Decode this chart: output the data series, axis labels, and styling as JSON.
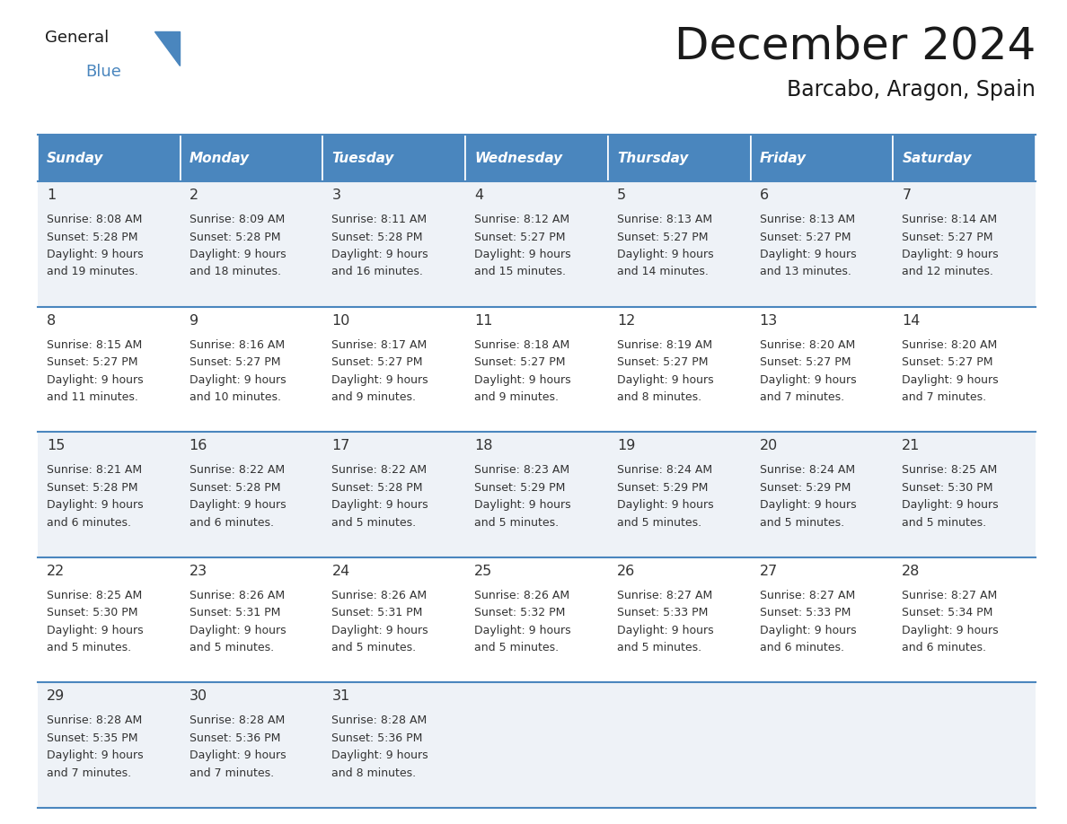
{
  "title": "December 2024",
  "subtitle": "Barcabo, Aragon, Spain",
  "header_bg": "#4a86be",
  "header_text_color": "#ffffff",
  "cell_bg_light": "#eef2f7",
  "cell_bg_white": "#ffffff",
  "border_color": "#4a86be",
  "text_color": "#333333",
  "days_of_week": [
    "Sunday",
    "Monday",
    "Tuesday",
    "Wednesday",
    "Thursday",
    "Friday",
    "Saturday"
  ],
  "weeks": [
    [
      {
        "day": "1",
        "sunrise": "8:08 AM",
        "sunset": "5:28 PM",
        "daylight_line1": "Daylight: 9 hours",
        "daylight_line2": "and 19 minutes."
      },
      {
        "day": "2",
        "sunrise": "8:09 AM",
        "sunset": "5:28 PM",
        "daylight_line1": "Daylight: 9 hours",
        "daylight_line2": "and 18 minutes."
      },
      {
        "day": "3",
        "sunrise": "8:11 AM",
        "sunset": "5:28 PM",
        "daylight_line1": "Daylight: 9 hours",
        "daylight_line2": "and 16 minutes."
      },
      {
        "day": "4",
        "sunrise": "8:12 AM",
        "sunset": "5:27 PM",
        "daylight_line1": "Daylight: 9 hours",
        "daylight_line2": "and 15 minutes."
      },
      {
        "day": "5",
        "sunrise": "8:13 AM",
        "sunset": "5:27 PM",
        "daylight_line1": "Daylight: 9 hours",
        "daylight_line2": "and 14 minutes."
      },
      {
        "day": "6",
        "sunrise": "8:13 AM",
        "sunset": "5:27 PM",
        "daylight_line1": "Daylight: 9 hours",
        "daylight_line2": "and 13 minutes."
      },
      {
        "day": "7",
        "sunrise": "8:14 AM",
        "sunset": "5:27 PM",
        "daylight_line1": "Daylight: 9 hours",
        "daylight_line2": "and 12 minutes."
      }
    ],
    [
      {
        "day": "8",
        "sunrise": "8:15 AM",
        "sunset": "5:27 PM",
        "daylight_line1": "Daylight: 9 hours",
        "daylight_line2": "and 11 minutes."
      },
      {
        "day": "9",
        "sunrise": "8:16 AM",
        "sunset": "5:27 PM",
        "daylight_line1": "Daylight: 9 hours",
        "daylight_line2": "and 10 minutes."
      },
      {
        "day": "10",
        "sunrise": "8:17 AM",
        "sunset": "5:27 PM",
        "daylight_line1": "Daylight: 9 hours",
        "daylight_line2": "and 9 minutes."
      },
      {
        "day": "11",
        "sunrise": "8:18 AM",
        "sunset": "5:27 PM",
        "daylight_line1": "Daylight: 9 hours",
        "daylight_line2": "and 9 minutes."
      },
      {
        "day": "12",
        "sunrise": "8:19 AM",
        "sunset": "5:27 PM",
        "daylight_line1": "Daylight: 9 hours",
        "daylight_line2": "and 8 minutes."
      },
      {
        "day": "13",
        "sunrise": "8:20 AM",
        "sunset": "5:27 PM",
        "daylight_line1": "Daylight: 9 hours",
        "daylight_line2": "and 7 minutes."
      },
      {
        "day": "14",
        "sunrise": "8:20 AM",
        "sunset": "5:27 PM",
        "daylight_line1": "Daylight: 9 hours",
        "daylight_line2": "and 7 minutes."
      }
    ],
    [
      {
        "day": "15",
        "sunrise": "8:21 AM",
        "sunset": "5:28 PM",
        "daylight_line1": "Daylight: 9 hours",
        "daylight_line2": "and 6 minutes."
      },
      {
        "day": "16",
        "sunrise": "8:22 AM",
        "sunset": "5:28 PM",
        "daylight_line1": "Daylight: 9 hours",
        "daylight_line2": "and 6 minutes."
      },
      {
        "day": "17",
        "sunrise": "8:22 AM",
        "sunset": "5:28 PM",
        "daylight_line1": "Daylight: 9 hours",
        "daylight_line2": "and 5 minutes."
      },
      {
        "day": "18",
        "sunrise": "8:23 AM",
        "sunset": "5:29 PM",
        "daylight_line1": "Daylight: 9 hours",
        "daylight_line2": "and 5 minutes."
      },
      {
        "day": "19",
        "sunrise": "8:24 AM",
        "sunset": "5:29 PM",
        "daylight_line1": "Daylight: 9 hours",
        "daylight_line2": "and 5 minutes."
      },
      {
        "day": "20",
        "sunrise": "8:24 AM",
        "sunset": "5:29 PM",
        "daylight_line1": "Daylight: 9 hours",
        "daylight_line2": "and 5 minutes."
      },
      {
        "day": "21",
        "sunrise": "8:25 AM",
        "sunset": "5:30 PM",
        "daylight_line1": "Daylight: 9 hours",
        "daylight_line2": "and 5 minutes."
      }
    ],
    [
      {
        "day": "22",
        "sunrise": "8:25 AM",
        "sunset": "5:30 PM",
        "daylight_line1": "Daylight: 9 hours",
        "daylight_line2": "and 5 minutes."
      },
      {
        "day": "23",
        "sunrise": "8:26 AM",
        "sunset": "5:31 PM",
        "daylight_line1": "Daylight: 9 hours",
        "daylight_line2": "and 5 minutes."
      },
      {
        "day": "24",
        "sunrise": "8:26 AM",
        "sunset": "5:31 PM",
        "daylight_line1": "Daylight: 9 hours",
        "daylight_line2": "and 5 minutes."
      },
      {
        "day": "25",
        "sunrise": "8:26 AM",
        "sunset": "5:32 PM",
        "daylight_line1": "Daylight: 9 hours",
        "daylight_line2": "and 5 minutes."
      },
      {
        "day": "26",
        "sunrise": "8:27 AM",
        "sunset": "5:33 PM",
        "daylight_line1": "Daylight: 9 hours",
        "daylight_line2": "and 5 minutes."
      },
      {
        "day": "27",
        "sunrise": "8:27 AM",
        "sunset": "5:33 PM",
        "daylight_line1": "Daylight: 9 hours",
        "daylight_line2": "and 6 minutes."
      },
      {
        "day": "28",
        "sunrise": "8:27 AM",
        "sunset": "5:34 PM",
        "daylight_line1": "Daylight: 9 hours",
        "daylight_line2": "and 6 minutes."
      }
    ],
    [
      {
        "day": "29",
        "sunrise": "8:28 AM",
        "sunset": "5:35 PM",
        "daylight_line1": "Daylight: 9 hours",
        "daylight_line2": "and 7 minutes."
      },
      {
        "day": "30",
        "sunrise": "8:28 AM",
        "sunset": "5:36 PM",
        "daylight_line1": "Daylight: 9 hours",
        "daylight_line2": "and 7 minutes."
      },
      {
        "day": "31",
        "sunrise": "8:28 AM",
        "sunset": "5:36 PM",
        "daylight_line1": "Daylight: 9 hours",
        "daylight_line2": "and 8 minutes."
      },
      null,
      null,
      null,
      null
    ]
  ]
}
